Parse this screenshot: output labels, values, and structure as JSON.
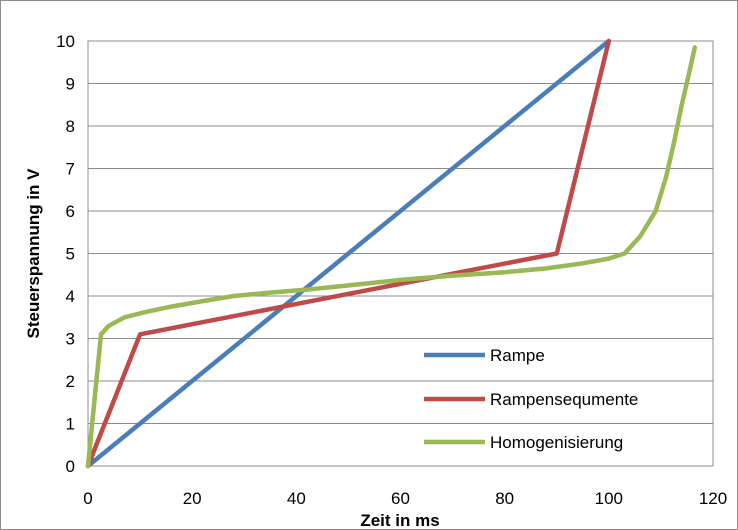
{
  "chart_data": {
    "type": "line",
    "xlabel": "Zeit in ms",
    "ylabel": "Steuerspannung in V",
    "xlim": [
      0,
      120
    ],
    "ylim": [
      0,
      10
    ],
    "x_ticks": [
      0,
      20,
      40,
      60,
      80,
      100,
      120
    ],
    "y_ticks": [
      0,
      1,
      2,
      3,
      4,
      5,
      6,
      7,
      8,
      9,
      10
    ],
    "grid": "horizontal",
    "legend_position": "bottom-right",
    "series": [
      {
        "name": "Rampe",
        "color": "#4a7ebb",
        "points": [
          [
            0,
            0
          ],
          [
            100,
            10
          ]
        ]
      },
      {
        "name": "Rampensequmente",
        "color": "#be4b48",
        "points": [
          [
            0,
            0
          ],
          [
            10,
            3.1
          ],
          [
            90,
            5.0
          ],
          [
            100,
            10
          ]
        ]
      },
      {
        "name": "Homogenisierung",
        "color": "#98b954",
        "points": [
          [
            0,
            0
          ],
          [
            2.5,
            3.1
          ],
          [
            4,
            3.3
          ],
          [
            7,
            3.5
          ],
          [
            11,
            3.62
          ],
          [
            16,
            3.75
          ],
          [
            22,
            3.88
          ],
          [
            28,
            4.0
          ],
          [
            35,
            4.08
          ],
          [
            42,
            4.15
          ],
          [
            50,
            4.25
          ],
          [
            60,
            4.38
          ],
          [
            70,
            4.48
          ],
          [
            80,
            4.56
          ],
          [
            88,
            4.65
          ],
          [
            95,
            4.77
          ],
          [
            100,
            4.88
          ],
          [
            103,
            5.0
          ],
          [
            106,
            5.4
          ],
          [
            109,
            6.0
          ],
          [
            111,
            6.8
          ],
          [
            112.5,
            7.6
          ],
          [
            114,
            8.5
          ],
          [
            115.5,
            9.3
          ],
          [
            116.5,
            9.85
          ]
        ]
      }
    ]
  }
}
